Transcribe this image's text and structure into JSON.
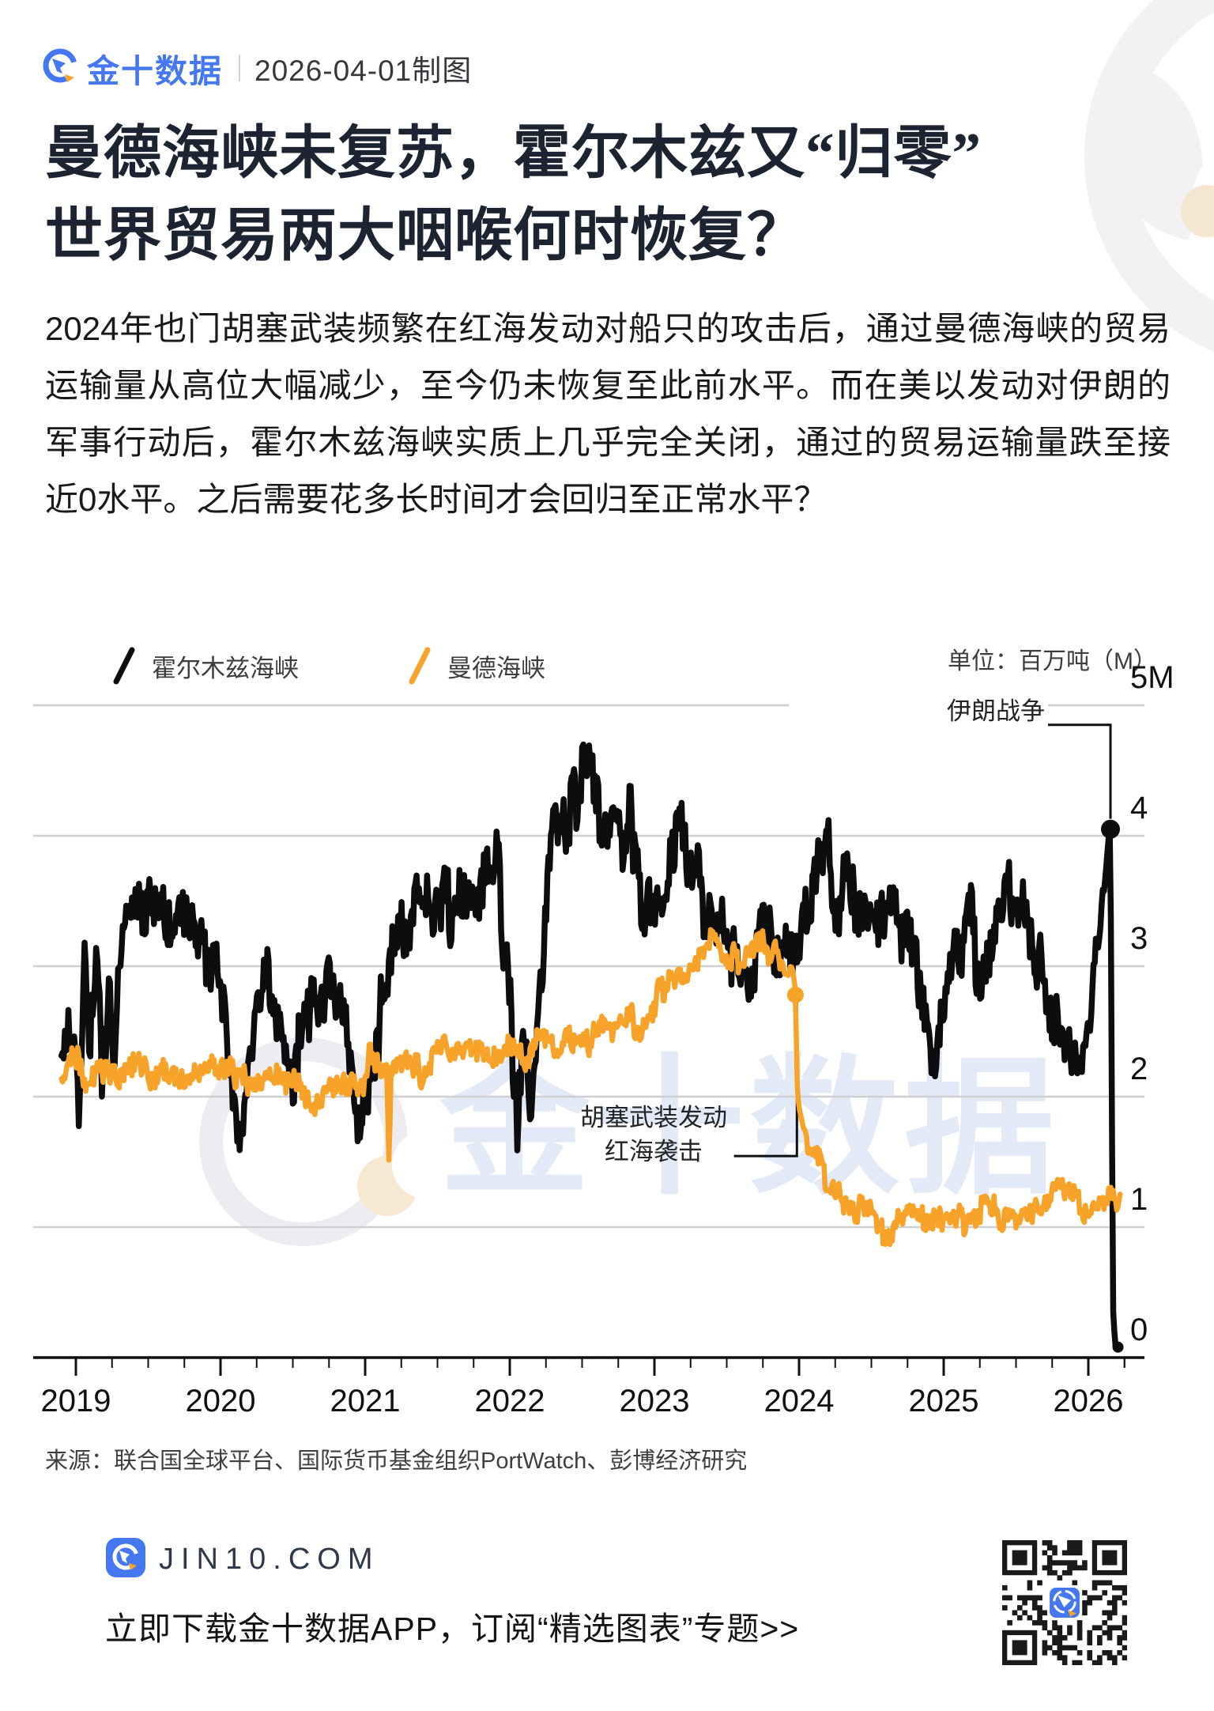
{
  "header": {
    "brand": "金十数据",
    "date_label": "2026-04-01制图"
  },
  "title": {
    "line1": "曼德海峡未复苏，霍尔木兹又“归零”",
    "line2": "世界贸易两大咽喉何时恢复？"
  },
  "paragraph": "2024年也门胡塞武装频繁在红海发动对船只的攻击后，通过曼德海峡的贸易运输量从高位大幅减少，至今仍未恢复至此前水平。而在美以发动对伊朗的军事行动后，霍尔木兹海峡实质上几乎完全关闭，通过的贸易运输量跌至接近0水平。之后需要花多长时间才会回归至正常水平？",
  "watermark": {
    "text": "金十数据"
  },
  "source": "来源：联合国全球平台、国际货币基金组织PortWatch、彭博经济研究",
  "footer": {
    "site": "JIN10.COM",
    "tagline": "立即下载金十数据APP，订阅“精选图表”专题>>",
    "qr_seed": 7
  },
  "colors": {
    "brand_blue": "#4577F1",
    "accent_orange": "#F7A329",
    "series_black": "#0d0d10",
    "grid": "#cfcfd2",
    "axis": "#0f1014"
  },
  "chart_data": {
    "type": "line",
    "unit_label": "单位：百万吨（M）",
    "ylim": [
      0,
      5
    ],
    "grid": "horizontal-only",
    "legend_position": "top",
    "y_tick_labels": [
      "5M",
      "4",
      "3",
      "2",
      "1",
      "0"
    ],
    "x_tick_labels": [
      "2019",
      "2020",
      "2021",
      "2022",
      "2023",
      "2024",
      "2025",
      "2026"
    ],
    "legend": [
      {
        "name": "霍尔木兹海峡",
        "color": "#0d0d10"
      },
      {
        "name": "曼德海峡",
        "color": "#F7A329"
      }
    ],
    "annotations": [
      {
        "text": "伊朗战争",
        "connector": [
          [
            2025.63,
            4.85
          ],
          [
            2026.153,
            4.85
          ],
          [
            2026.153,
            4.13
          ]
        ]
      },
      {
        "text_lines": [
          "胡塞武装发动",
          "红海袭击"
        ],
        "connector": [
          [
            2023.55,
            1.545
          ],
          [
            2023.985,
            1.545
          ],
          [
            2023.985,
            2.72
          ]
        ]
      }
    ],
    "markers": [
      {
        "series": 0,
        "t": 2026.153,
        "v": 4.05,
        "r": 12
      },
      {
        "series": 0,
        "t": 2026.205,
        "v": 0.08,
        "r": 7
      },
      {
        "series": 1,
        "t": 2023.975,
        "v": 2.78,
        "r": 10.5
      }
    ],
    "series": [
      {
        "name": "霍尔木兹海峡",
        "color": "#0d0d10",
        "stroke_width": 7.5,
        "seed": 11,
        "noise_amp": [
          [
            2018.9,
            0.5
          ],
          [
            2019.3,
            0.42
          ],
          [
            2022.3,
            0.45
          ],
          [
            2025.9,
            0.4
          ],
          [
            2026.05,
            0.35
          ],
          [
            2026.13,
            0.05
          ],
          [
            2026.21,
            0.02
          ]
        ],
        "points": [
          [
            2018.9,
            2.5
          ],
          [
            2019.02,
            1.95
          ],
          [
            2019.06,
            2.75
          ],
          [
            2019.1,
            2.2
          ],
          [
            2019.14,
            2.9
          ],
          [
            2019.18,
            2.1
          ],
          [
            2019.22,
            2.85
          ],
          [
            2019.27,
            2.45
          ],
          [
            2019.3,
            3.3
          ],
          [
            2019.42,
            3.5
          ],
          [
            2019.5,
            3.45
          ],
          [
            2019.58,
            3.55
          ],
          [
            2019.67,
            3.4
          ],
          [
            2019.75,
            3.5
          ],
          [
            2019.83,
            3.35
          ],
          [
            2019.92,
            3.05
          ],
          [
            2020.0,
            2.7
          ],
          [
            2020.06,
            2.1
          ],
          [
            2020.12,
            1.6
          ],
          [
            2020.17,
            2.1
          ],
          [
            2020.25,
            2.7
          ],
          [
            2020.33,
            2.9
          ],
          [
            2020.42,
            2.5
          ],
          [
            2020.5,
            2.35
          ],
          [
            2020.58,
            2.6
          ],
          [
            2020.67,
            2.5
          ],
          [
            2020.75,
            2.75
          ],
          [
            2020.83,
            2.4
          ],
          [
            2020.92,
            2.1
          ],
          [
            2021.0,
            1.85
          ],
          [
            2021.08,
            2.3
          ],
          [
            2021.17,
            2.9
          ],
          [
            2021.25,
            3.3
          ],
          [
            2021.33,
            3.4
          ],
          [
            2021.42,
            3.3
          ],
          [
            2021.5,
            3.5
          ],
          [
            2021.58,
            3.45
          ],
          [
            2021.67,
            3.6
          ],
          [
            2021.75,
            3.5
          ],
          [
            2021.83,
            3.65
          ],
          [
            2021.92,
            3.55
          ],
          [
            2022.0,
            2.9
          ],
          [
            2022.05,
            1.9
          ],
          [
            2022.1,
            2.6
          ],
          [
            2022.15,
            1.95
          ],
          [
            2022.22,
            3.0
          ],
          [
            2022.3,
            3.8
          ],
          [
            2022.4,
            4.1
          ],
          [
            2022.5,
            4.4
          ],
          [
            2022.58,
            4.2
          ],
          [
            2022.67,
            3.95
          ],
          [
            2022.75,
            3.8
          ],
          [
            2022.83,
            3.95
          ],
          [
            2022.92,
            3.7
          ],
          [
            2023.0,
            3.55
          ],
          [
            2023.08,
            3.75
          ],
          [
            2023.17,
            3.95
          ],
          [
            2023.25,
            3.75
          ],
          [
            2023.33,
            3.6
          ],
          [
            2023.42,
            3.4
          ],
          [
            2023.5,
            3.1
          ],
          [
            2023.58,
            2.8
          ],
          [
            2023.67,
            2.95
          ],
          [
            2023.75,
            3.3
          ],
          [
            2023.83,
            3.2
          ],
          [
            2023.92,
            3.05
          ],
          [
            2024.0,
            3.2
          ],
          [
            2024.08,
            3.55
          ],
          [
            2024.2,
            3.9
          ],
          [
            2024.25,
            3.6
          ],
          [
            2024.33,
            3.7
          ],
          [
            2024.42,
            3.55
          ],
          [
            2024.5,
            3.4
          ],
          [
            2024.58,
            3.55
          ],
          [
            2024.67,
            3.4
          ],
          [
            2024.75,
            3.3
          ],
          [
            2024.83,
            2.9
          ],
          [
            2024.92,
            2.2
          ],
          [
            2025.0,
            2.7
          ],
          [
            2025.08,
            3.1
          ],
          [
            2025.17,
            3.3
          ],
          [
            2025.25,
            2.8
          ],
          [
            2025.33,
            3.3
          ],
          [
            2025.42,
            3.6
          ],
          [
            2025.5,
            3.5
          ],
          [
            2025.58,
            3.3
          ],
          [
            2025.67,
            3.1
          ],
          [
            2025.75,
            2.8
          ],
          [
            2025.83,
            2.5
          ],
          [
            2025.92,
            2.2
          ],
          [
            2026.0,
            2.5
          ],
          [
            2026.05,
            3.0
          ],
          [
            2026.1,
            3.5
          ],
          [
            2026.14,
            3.95
          ],
          [
            2026.153,
            4.05
          ],
          [
            2026.162,
            2.0
          ],
          [
            2026.172,
            0.35
          ],
          [
            2026.185,
            0.1
          ],
          [
            2026.21,
            0.07
          ]
        ]
      },
      {
        "name": "曼德海峡",
        "color": "#F7A329",
        "stroke_width": 6.5,
        "seed": 29,
        "noise_amp": [
          [
            2018.9,
            0.2
          ],
          [
            2021.14,
            0.18
          ],
          [
            2021.16,
            0.02
          ],
          [
            2021.19,
            0.18
          ],
          [
            2023.9,
            0.16
          ],
          [
            2023.955,
            0.03
          ],
          [
            2024.02,
            0.06
          ],
          [
            2024.12,
            0.18
          ],
          [
            2026.22,
            0.16
          ]
        ],
        "points": [
          [
            2018.9,
            2.2
          ],
          [
            2019.0,
            2.3
          ],
          [
            2019.1,
            2.15
          ],
          [
            2019.2,
            2.25
          ],
          [
            2019.3,
            2.1
          ],
          [
            2019.4,
            2.3
          ],
          [
            2019.5,
            2.2
          ],
          [
            2019.6,
            2.25
          ],
          [
            2019.7,
            2.15
          ],
          [
            2019.8,
            2.3
          ],
          [
            2019.9,
            2.2
          ],
          [
            2020.0,
            2.3
          ],
          [
            2020.1,
            2.2
          ],
          [
            2020.2,
            2.15
          ],
          [
            2020.3,
            2.2
          ],
          [
            2020.4,
            2.1
          ],
          [
            2020.5,
            2.15
          ],
          [
            2020.6,
            2.05
          ],
          [
            2020.7,
            2.0
          ],
          [
            2020.8,
            2.1
          ],
          [
            2020.9,
            2.15
          ],
          [
            2021.0,
            2.2
          ],
          [
            2021.08,
            2.25
          ],
          [
            2021.15,
            2.2
          ],
          [
            2021.165,
            1.45
          ],
          [
            2021.18,
            2.2
          ],
          [
            2021.3,
            2.3
          ],
          [
            2021.4,
            2.25
          ],
          [
            2021.5,
            2.35
          ],
          [
            2021.6,
            2.3
          ],
          [
            2021.7,
            2.4
          ],
          [
            2021.8,
            2.35
          ],
          [
            2021.9,
            2.3
          ],
          [
            2022.0,
            2.35
          ],
          [
            2022.1,
            2.3
          ],
          [
            2022.2,
            2.4
          ],
          [
            2022.3,
            2.35
          ],
          [
            2022.4,
            2.45
          ],
          [
            2022.5,
            2.4
          ],
          [
            2022.6,
            2.5
          ],
          [
            2022.7,
            2.55
          ],
          [
            2022.8,
            2.65
          ],
          [
            2022.9,
            2.6
          ],
          [
            2023.0,
            2.75
          ],
          [
            2023.1,
            2.9
          ],
          [
            2023.2,
            3.0
          ],
          [
            2023.3,
            3.05
          ],
          [
            2023.4,
            3.15
          ],
          [
            2023.5,
            3.1
          ],
          [
            2023.6,
            3.0
          ],
          [
            2023.7,
            3.1
          ],
          [
            2023.8,
            3.15
          ],
          [
            2023.9,
            3.05
          ],
          [
            2023.96,
            2.95
          ],
          [
            2023.975,
            2.82
          ],
          [
            2023.99,
            2.0
          ],
          [
            2024.02,
            1.8
          ],
          [
            2024.1,
            1.5
          ],
          [
            2024.2,
            1.3
          ],
          [
            2024.3,
            1.2
          ],
          [
            2024.4,
            1.15
          ],
          [
            2024.5,
            1.1
          ],
          [
            2024.6,
            1.0
          ],
          [
            2024.7,
            1.05
          ],
          [
            2024.8,
            1.0
          ],
          [
            2024.9,
            1.05
          ],
          [
            2025.0,
            1.1
          ],
          [
            2025.1,
            1.05
          ],
          [
            2025.2,
            1.1
          ],
          [
            2025.3,
            1.15
          ],
          [
            2025.4,
            1.1
          ],
          [
            2025.5,
            1.05
          ],
          [
            2025.6,
            1.1
          ],
          [
            2025.7,
            1.2
          ],
          [
            2025.8,
            1.3
          ],
          [
            2025.9,
            1.25
          ],
          [
            2026.0,
            1.1
          ],
          [
            2026.1,
            1.15
          ],
          [
            2026.22,
            1.25
          ]
        ]
      }
    ]
  }
}
